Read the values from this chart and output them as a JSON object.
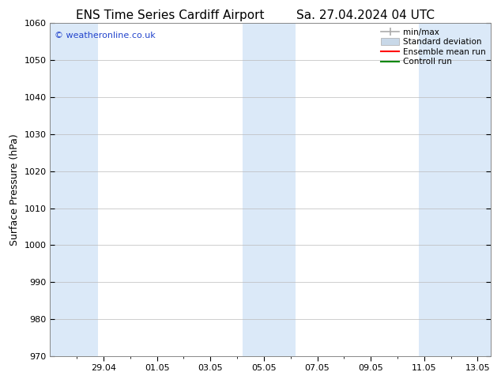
{
  "title_left": "ENS Time Series Cardiff Airport",
  "title_right": "Sa. 27.04.2024 04 UTC",
  "ylabel": "Surface Pressure (hPa)",
  "watermark": "© weatheronline.co.uk",
  "ylim": [
    970,
    1060
  ],
  "yticks": [
    970,
    980,
    990,
    1000,
    1010,
    1020,
    1030,
    1040,
    1050,
    1060
  ],
  "xtick_labels": [
    "29.04",
    "01.05",
    "03.05",
    "05.05",
    "07.05",
    "09.05",
    "11.05",
    "13.05"
  ],
  "x_min": 0.0,
  "x_max": 16.5,
  "shaded_bands": [
    {
      "x_start": 0.0,
      "x_end": 1.8,
      "color": "#dbe9f8"
    },
    {
      "x_start": 7.2,
      "x_end": 9.2,
      "color": "#dbe9f8"
    },
    {
      "x_start": 13.8,
      "x_end": 16.5,
      "color": "#dbe9f8"
    }
  ],
  "legend_items": [
    {
      "label": "min/max",
      "color": "#aaaaaa",
      "type": "errorbar"
    },
    {
      "label": "Standard deviation",
      "color": "#c8d8e8",
      "type": "patch"
    },
    {
      "label": "Ensemble mean run",
      "color": "#ff0000",
      "type": "line"
    },
    {
      "label": "Controll run",
      "color": "#008800",
      "type": "line"
    }
  ],
  "background_color": "#ffffff",
  "plot_bg_color": "#ffffff",
  "grid_color": "#bbbbbb",
  "title_fontsize": 11,
  "tick_fontsize": 8,
  "label_fontsize": 9,
  "watermark_color": "#2244cc",
  "watermark_fontsize": 8
}
